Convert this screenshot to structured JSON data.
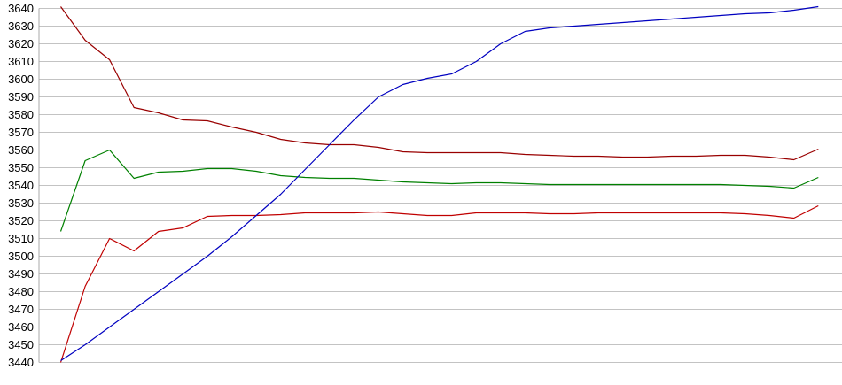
{
  "chart_data": {
    "type": "line",
    "title": "",
    "xlabel": "",
    "ylabel": "",
    "legend": "none",
    "grid": "horizontal-only",
    "x_axis": {
      "labels_visible": false,
      "num_points": 32
    },
    "y_axis": {
      "min": 3440,
      "max": 3640,
      "tick_step": 10,
      "tick_labels": [
        "3640",
        "3630",
        "3620",
        "3610",
        "3600",
        "3590",
        "3580",
        "3570",
        "3560",
        "3550",
        "3540",
        "3530",
        "3520",
        "3510",
        "3500",
        "3490",
        "3480",
        "3470",
        "3460",
        "3450",
        "3440"
      ]
    },
    "series": [
      {
        "name": "dark-red-line",
        "color": "#990000",
        "values": [
          3641,
          3622,
          3611,
          3584,
          3581,
          3577,
          3576.5,
          3573,
          3570,
          3566,
          3564,
          3563,
          3563,
          3561.5,
          3559,
          3558.5,
          3558.5,
          3558.5,
          3558.5,
          3557.5,
          3557,
          3556.5,
          3556.5,
          3556,
          3556,
          3556.5,
          3556.5,
          3557,
          3557,
          3556,
          3554.5,
          3560.5
        ]
      },
      {
        "name": "green-line",
        "color": "#008000",
        "values": [
          3514,
          3554,
          3560,
          3544,
          3547.5,
          3548,
          3549.5,
          3549.5,
          3548,
          3545.5,
          3544.5,
          3544,
          3544,
          3543,
          3542,
          3541.5,
          3541,
          3541.5,
          3541.5,
          3541,
          3540.5,
          3540.5,
          3540.5,
          3540.5,
          3540.5,
          3540.5,
          3540.5,
          3540.5,
          3540,
          3539.5,
          3538.5,
          3544.5
        ]
      },
      {
        "name": "red-line",
        "color": "#c00000",
        "values": [
          3440,
          3483,
          3510,
          3503,
          3514,
          3516,
          3522.5,
          3523,
          3523,
          3523.5,
          3524.5,
          3524.5,
          3524.5,
          3525,
          3524,
          3523,
          3523,
          3524.5,
          3524.5,
          3524.5,
          3524,
          3524,
          3524.5,
          3524.5,
          3524.5,
          3524.5,
          3524.5,
          3524.5,
          3524,
          3523,
          3521.5,
          3528.5
        ]
      },
      {
        "name": "blue-line",
        "color": "#0000c0",
        "values": [
          3441,
          3450,
          3460,
          3470,
          3480,
          3490,
          3500,
          3511,
          3523,
          3535,
          3549,
          3563,
          3577,
          3590,
          3597,
          3600.5,
          3603,
          3610,
          3620,
          3627,
          3629,
          3630,
          3631,
          3632,
          3633,
          3634,
          3635,
          3636,
          3637,
          3637.5,
          3639,
          3641
        ]
      }
    ],
    "style": {
      "gridline_color": "#c3c3c3",
      "axis_line_color": "#aaaaaa",
      "background_color": "#ffffff",
      "label_color": "#000000"
    }
  }
}
